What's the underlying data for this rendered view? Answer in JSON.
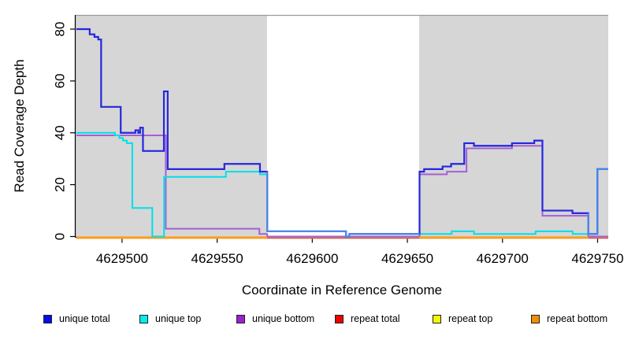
{
  "chart_data": {
    "type": "line",
    "step": true,
    "title": "",
    "xlabel": "Coordinate in Reference Genome",
    "ylabel": "Read Coverage Depth",
    "xlim": [
      4629475.6,
      4629755.6
    ],
    "ylim": [
      0,
      85.5
    ],
    "x_ticks": [
      4629500,
      4629550,
      4629600,
      4629650,
      4629700,
      4629750
    ],
    "y_ticks": [
      0,
      20,
      40,
      60,
      80
    ],
    "grid": false,
    "legend_position": "bottom",
    "background_color": "#ffffff",
    "shaded_regions": [
      {
        "from": 4629475.6,
        "to": 4629576.2,
        "color": "#d6d6d6"
      },
      {
        "from": 4629656.2,
        "to": 4629755.6,
        "color": "#d6d6d6"
      }
    ],
    "overlap": {
      "series": [
        "unique total",
        "unique top"
      ],
      "color": "#4a87ea"
    },
    "series": [
      {
        "name": "unique bottom",
        "color": "#a55fd6",
        "steps": [
          [
            4629476.0,
            39
          ],
          [
            4629523.0,
            3
          ],
          [
            4629572.2,
            1
          ],
          [
            4629576.3,
            0
          ],
          [
            4629656.4,
            24
          ],
          [
            4629670.8,
            25
          ],
          [
            4629681.1,
            34
          ],
          [
            4629705.0,
            35
          ],
          [
            4629721.0,
            8
          ],
          [
            4629745.1,
            0
          ],
          [
            4629755.6,
            0
          ]
        ]
      },
      {
        "name": "repeat top",
        "color": "#f2f202",
        "steps": [
          [
            4629476.0,
            0
          ],
          [
            4629755.6,
            0
          ]
        ]
      },
      {
        "name": "repeat total",
        "color": "#d04a78",
        "steps": [
          [
            4629476.0,
            0
          ],
          [
            4629755.6,
            0
          ]
        ]
      },
      {
        "name": "repeat bottom",
        "color": "#ff9c1c",
        "steps": [
          [
            4629476.0,
            0
          ],
          [
            4629576.2,
            null
          ],
          [
            4629656.2,
            0
          ],
          [
            4629745.1,
            null
          ]
        ]
      },
      {
        "name": "unique top",
        "color": "#00dfe9",
        "steps": [
          [
            4629476.0,
            40
          ],
          [
            4629496.3,
            39
          ],
          [
            4629498.5,
            38
          ],
          [
            4629500.5,
            37
          ],
          [
            4629502.5,
            36
          ],
          [
            4629505.4,
            11
          ],
          [
            4629515.9,
            0
          ],
          [
            4629522.1,
            23
          ],
          [
            4629554.6,
            25
          ],
          [
            4629572.5,
            24
          ],
          [
            4629576.3,
            2
          ],
          [
            4629617.7,
            0
          ],
          [
            4629619.5,
            1
          ],
          [
            4629673.3,
            2
          ],
          [
            4629685.0,
            1
          ],
          [
            4629717.4,
            2
          ],
          [
            4629736.9,
            1
          ],
          [
            4629749.9,
            26
          ],
          [
            4629755.6,
            26
          ]
        ]
      },
      {
        "name": "unique total",
        "color": "#2527dd",
        "steps": [
          [
            4629476.0,
            80
          ],
          [
            4629483.0,
            78
          ],
          [
            4629485.5,
            77
          ],
          [
            4629487.5,
            76
          ],
          [
            4629489.0,
            50
          ],
          [
            4629499.3,
            40
          ],
          [
            4629507.0,
            41
          ],
          [
            4629508.5,
            40
          ],
          [
            4629509.5,
            42
          ],
          [
            4629511.0,
            33
          ],
          [
            4629522.0,
            56
          ],
          [
            4629524.0,
            26
          ],
          [
            4629553.8,
            28
          ],
          [
            4629572.5,
            25
          ],
          [
            4629576.3,
            2
          ],
          [
            4629617.7,
            0
          ],
          [
            4629619.5,
            1
          ],
          [
            4629656.4,
            25
          ],
          [
            4629658.8,
            26
          ],
          [
            4629668.5,
            27
          ],
          [
            4629673.0,
            28
          ],
          [
            4629679.9,
            36
          ],
          [
            4629685.0,
            35
          ],
          [
            4629705.0,
            36
          ],
          [
            4629716.7,
            37
          ],
          [
            4629721.0,
            10
          ],
          [
            4629736.8,
            9
          ],
          [
            4629745.1,
            1
          ],
          [
            4629749.9,
            26
          ],
          [
            4629755.6,
            26
          ]
        ]
      }
    ]
  },
  "legend": {
    "items": [
      {
        "label": "unique total",
        "color": "#0a0aee"
      },
      {
        "label": "unique top",
        "color": "#00eeee"
      },
      {
        "label": "unique bottom",
        "color": "#9a22cc"
      },
      {
        "label": "repeat total",
        "color": "#ee0000"
      },
      {
        "label": "repeat top",
        "color": "#f7f700"
      },
      {
        "label": "repeat bottom",
        "color": "#f09000"
      }
    ]
  }
}
